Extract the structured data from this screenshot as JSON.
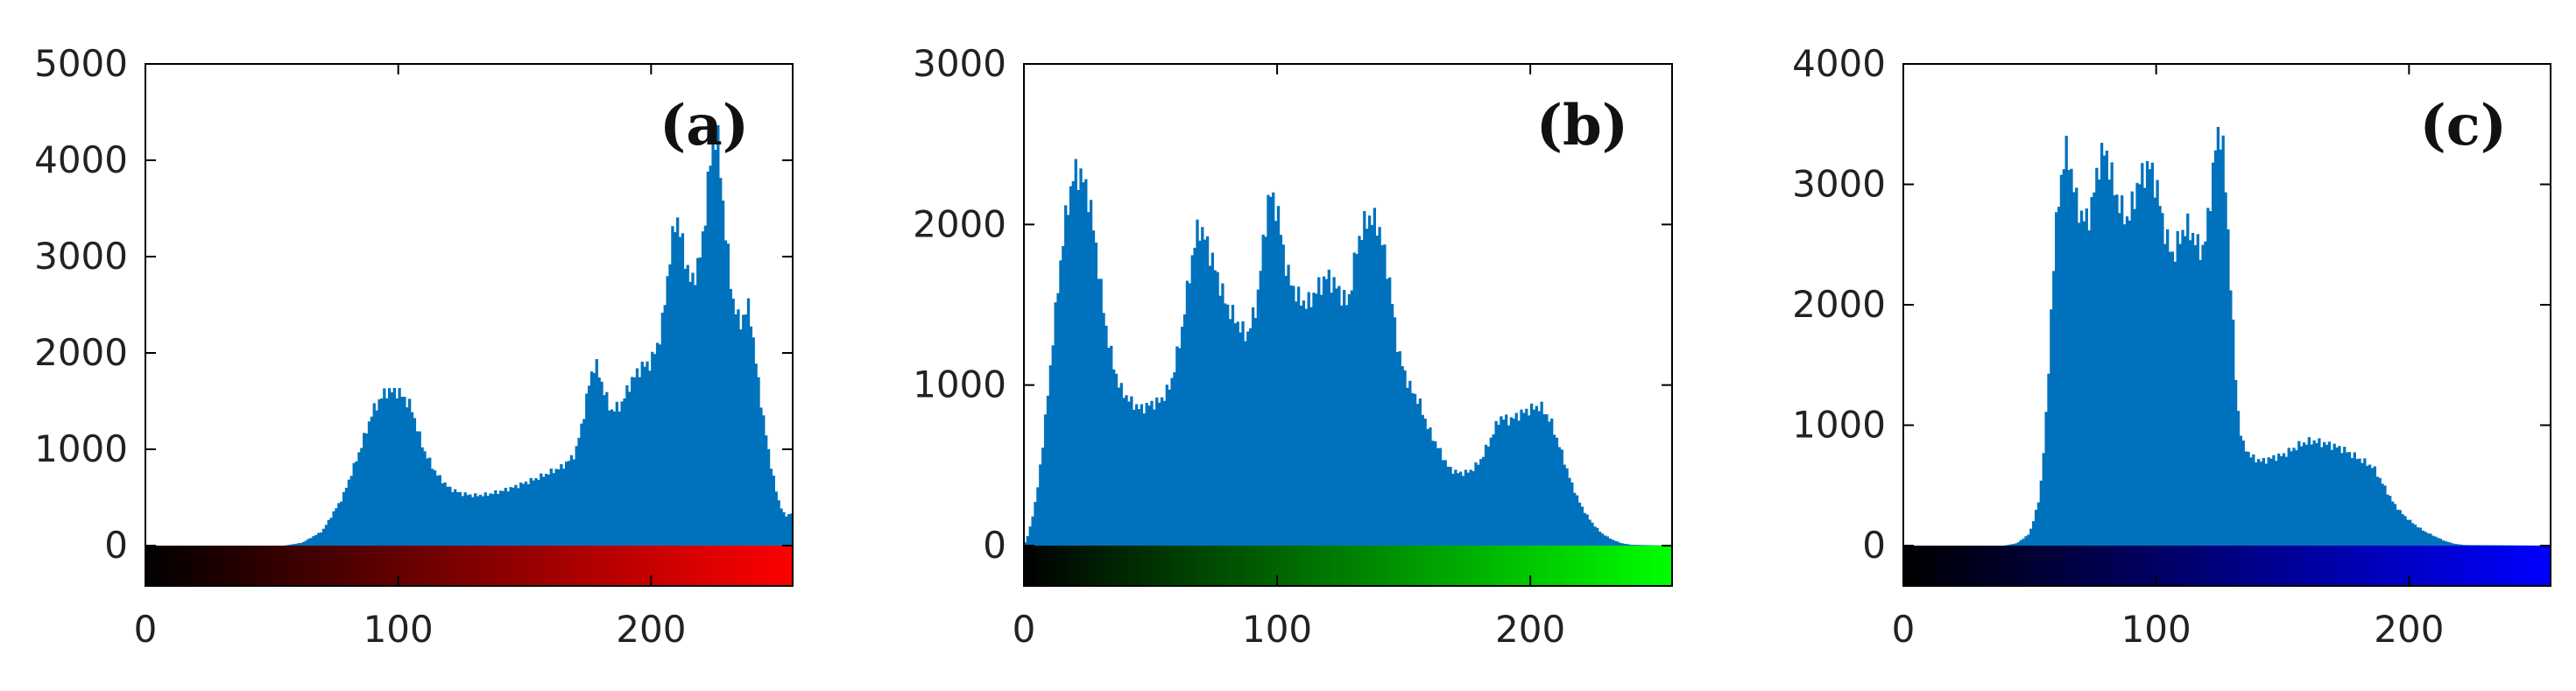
{
  "chart_data": [
    {
      "type": "bar",
      "panel_label": "(a)",
      "channel_color": "#ff0000",
      "bar_color": "#0072bd",
      "xlim": [
        0,
        256
      ],
      "ylim": [
        -420,
        5000
      ],
      "xticks": [
        0,
        100,
        200
      ],
      "yticks": [
        0,
        1000,
        2000,
        3000,
        4000,
        5000
      ],
      "title": "",
      "xlabel": "",
      "ylabel": "",
      "profile": [
        [
          0,
          0
        ],
        [
          55,
          0
        ],
        [
          62,
          30
        ],
        [
          70,
          150
        ],
        [
          78,
          500
        ],
        [
          85,
          1000
        ],
        [
          90,
          1400
        ],
        [
          95,
          1600
        ],
        [
          100,
          1600
        ],
        [
          105,
          1450
        ],
        [
          110,
          1000
        ],
        [
          115,
          750
        ],
        [
          120,
          600
        ],
        [
          125,
          540
        ],
        [
          130,
          520
        ],
        [
          135,
          530
        ],
        [
          140,
          560
        ],
        [
          145,
          600
        ],
        [
          150,
          650
        ],
        [
          155,
          700
        ],
        [
          160,
          760
        ],
        [
          165,
          820
        ],
        [
          170,
          950
        ],
        [
          173,
          1300
        ],
        [
          176,
          1750
        ],
        [
          178,
          1900
        ],
        [
          181,
          1650
        ],
        [
          184,
          1400
        ],
        [
          188,
          1450
        ],
        [
          192,
          1700
        ],
        [
          196,
          1850
        ],
        [
          200,
          1900
        ],
        [
          204,
          2200
        ],
        [
          207,
          2900
        ],
        [
          210,
          3450
        ],
        [
          213,
          3050
        ],
        [
          216,
          2700
        ],
        [
          220,
          3050
        ],
        [
          223,
          3900
        ],
        [
          226,
          4350
        ],
        [
          229,
          3400
        ],
        [
          232,
          2600
        ],
        [
          235,
          2300
        ],
        [
          239,
          2500
        ],
        [
          241,
          2000
        ],
        [
          244,
          1400
        ],
        [
          247,
          900
        ],
        [
          250,
          500
        ],
        [
          253,
          300
        ],
        [
          256,
          350
        ]
      ]
    },
    {
      "type": "bar",
      "panel_label": "(b)",
      "channel_color": "#00ff00",
      "bar_color": "#0072bd",
      "xlim": [
        0,
        256
      ],
      "ylim": [
        -250,
        3000
      ],
      "xticks": [
        0,
        100,
        200
      ],
      "yticks": [
        0,
        1000,
        2000,
        3000
      ],
      "title": "",
      "xlabel": "",
      "ylabel": "",
      "profile": [
        [
          0,
          0
        ],
        [
          2,
          80
        ],
        [
          5,
          300
        ],
        [
          8,
          700
        ],
        [
          11,
          1200
        ],
        [
          14,
          1700
        ],
        [
          17,
          2100
        ],
        [
          20,
          2330
        ],
        [
          23,
          2300
        ],
        [
          26,
          2150
        ],
        [
          29,
          1800
        ],
        [
          32,
          1400
        ],
        [
          35,
          1150
        ],
        [
          38,
          980
        ],
        [
          42,
          900
        ],
        [
          46,
          850
        ],
        [
          50,
          880
        ],
        [
          54,
          900
        ],
        [
          58,
          1000
        ],
        [
          62,
          1300
        ],
        [
          66,
          1750
        ],
        [
          69,
          2000
        ],
        [
          72,
          1900
        ],
        [
          76,
          1700
        ],
        [
          80,
          1500
        ],
        [
          84,
          1400
        ],
        [
          88,
          1300
        ],
        [
          92,
          1500
        ],
        [
          95,
          1950
        ],
        [
          97,
          2200
        ],
        [
          100,
          2100
        ],
        [
          104,
          1700
        ],
        [
          108,
          1550
        ],
        [
          112,
          1500
        ],
        [
          116,
          1600
        ],
        [
          120,
          1680
        ],
        [
          124,
          1600
        ],
        [
          128,
          1500
        ],
        [
          132,
          1900
        ],
        [
          136,
          2050
        ],
        [
          140,
          2000
        ],
        [
          144,
          1700
        ],
        [
          148,
          1200
        ],
        [
          152,
          1000
        ],
        [
          156,
          900
        ],
        [
          160,
          720
        ],
        [
          164,
          600
        ],
        [
          168,
          480
        ],
        [
          172,
          450
        ],
        [
          176,
          460
        ],
        [
          180,
          520
        ],
        [
          184,
          650
        ],
        [
          188,
          800
        ],
        [
          192,
          780
        ],
        [
          196,
          820
        ],
        [
          200,
          850
        ],
        [
          204,
          870
        ],
        [
          208,
          780
        ],
        [
          212,
          600
        ],
        [
          216,
          400
        ],
        [
          220,
          250
        ],
        [
          224,
          150
        ],
        [
          228,
          80
        ],
        [
          232,
          40
        ],
        [
          236,
          15
        ],
        [
          240,
          5
        ],
        [
          256,
          0
        ]
      ]
    },
    {
      "type": "bar",
      "panel_label": "(c)",
      "channel_color": "#0000ff",
      "bar_color": "#0072bd",
      "xlim": [
        0,
        256
      ],
      "ylim": [
        -330,
        4000
      ],
      "xticks": [
        0,
        100,
        200
      ],
      "yticks": [
        0,
        1000,
        2000,
        3000,
        4000
      ],
      "title": "",
      "xlabel": "",
      "ylabel": "",
      "profile": [
        [
          0,
          0
        ],
        [
          40,
          0
        ],
        [
          45,
          20
        ],
        [
          50,
          100
        ],
        [
          54,
          400
        ],
        [
          57,
          1200
        ],
        [
          59,
          2200
        ],
        [
          61,
          2800
        ],
        [
          63,
          3150
        ],
        [
          65,
          3300
        ],
        [
          68,
          2900
        ],
        [
          71,
          2700
        ],
        [
          74,
          2750
        ],
        [
          77,
          3150
        ],
        [
          80,
          3300
        ],
        [
          83,
          3000
        ],
        [
          86,
          2800
        ],
        [
          89,
          2700
        ],
        [
          92,
          2950
        ],
        [
          95,
          3100
        ],
        [
          98,
          3150
        ],
        [
          101,
          2900
        ],
        [
          104,
          2550
        ],
        [
          107,
          2400
        ],
        [
          110,
          2600
        ],
        [
          113,
          2650
        ],
        [
          116,
          2500
        ],
        [
          119,
          2450
        ],
        [
          122,
          3000
        ],
        [
          124,
          3400
        ],
        [
          126,
          3450
        ],
        [
          128,
          2800
        ],
        [
          130,
          2000
        ],
        [
          132,
          1200
        ],
        [
          134,
          850
        ],
        [
          138,
          730
        ],
        [
          142,
          700
        ],
        [
          146,
          730
        ],
        [
          150,
          750
        ],
        [
          154,
          800
        ],
        [
          158,
          850
        ],
        [
          162,
          870
        ],
        [
          166,
          850
        ],
        [
          170,
          830
        ],
        [
          174,
          800
        ],
        [
          178,
          750
        ],
        [
          182,
          700
        ],
        [
          186,
          650
        ],
        [
          190,
          500
        ],
        [
          194,
          350
        ],
        [
          198,
          250
        ],
        [
          202,
          180
        ],
        [
          206,
          120
        ],
        [
          210,
          80
        ],
        [
          214,
          40
        ],
        [
          218,
          15
        ],
        [
          222,
          5
        ],
        [
          256,
          0
        ]
      ]
    }
  ]
}
